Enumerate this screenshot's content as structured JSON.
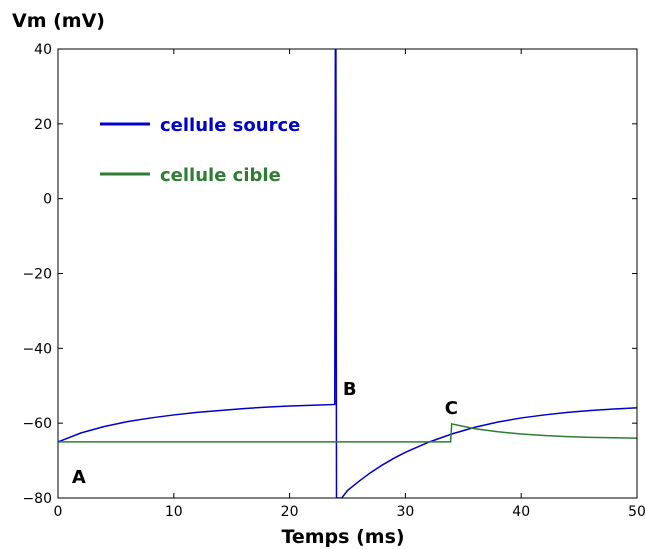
{
  "chart_data": {
    "type": "line",
    "ylabel": "Vm (mV)",
    "xlabel": "Temps (ms)",
    "xlim": [
      0,
      50
    ],
    "ylim": [
      -80,
      40
    ],
    "xticks": [
      0,
      10,
      20,
      30,
      40,
      50
    ],
    "yticks": [
      40,
      20,
      0,
      -20,
      -40,
      -60,
      -80
    ],
    "xtick_labels": [
      "0",
      "10",
      "20",
      "30",
      "40",
      "50"
    ],
    "ytick_labels": [
      "40",
      "20",
      "0",
      "−20",
      "−40",
      "−60",
      "−80"
    ],
    "grid": false,
    "legend_position": "upper-left",
    "series": [
      {
        "name": "cellule source",
        "color": "#0000cc",
        "x": [
          0,
          2,
          4,
          6,
          8,
          10,
          12,
          14,
          16,
          18,
          20,
          22,
          23.9,
          23.95,
          24.0,
          24.05,
          24.5,
          25,
          26,
          27,
          28,
          29,
          30,
          32,
          34,
          36,
          38,
          40,
          42,
          44,
          46,
          48,
          50
        ],
        "y": [
          -65,
          -62.6,
          -60.9,
          -59.6,
          -58.6,
          -57.8,
          -57.1,
          -56.6,
          -56.1,
          -55.7,
          -55.4,
          -55.2,
          -55,
          40,
          40,
          -80,
          -80,
          -78,
          -75.5,
          -73.2,
          -71.2,
          -69.4,
          -67.8,
          -65.1,
          -62.9,
          -61.1,
          -59.7,
          -58.6,
          -57.8,
          -57.1,
          -56.6,
          -56.2,
          -55.9
        ]
      },
      {
        "name": "cellule cible",
        "color": "#2e7d32",
        "x": [
          0,
          10,
          20,
          30,
          33.9,
          34.0,
          36,
          38,
          40,
          42,
          44,
          46,
          48,
          50
        ],
        "y": [
          -65,
          -65,
          -65,
          -65,
          -65,
          -60.2,
          -61.5,
          -62.3,
          -62.9,
          -63.3,
          -63.6,
          -63.8,
          -63.9,
          -64
        ]
      }
    ],
    "annotations": [
      {
        "text": "A",
        "x": 1.2,
        "y": -76
      },
      {
        "text": "B",
        "x": 24.6,
        "y": -52.5
      },
      {
        "text": "C",
        "x": 33.4,
        "y": -57.5
      }
    ]
  }
}
